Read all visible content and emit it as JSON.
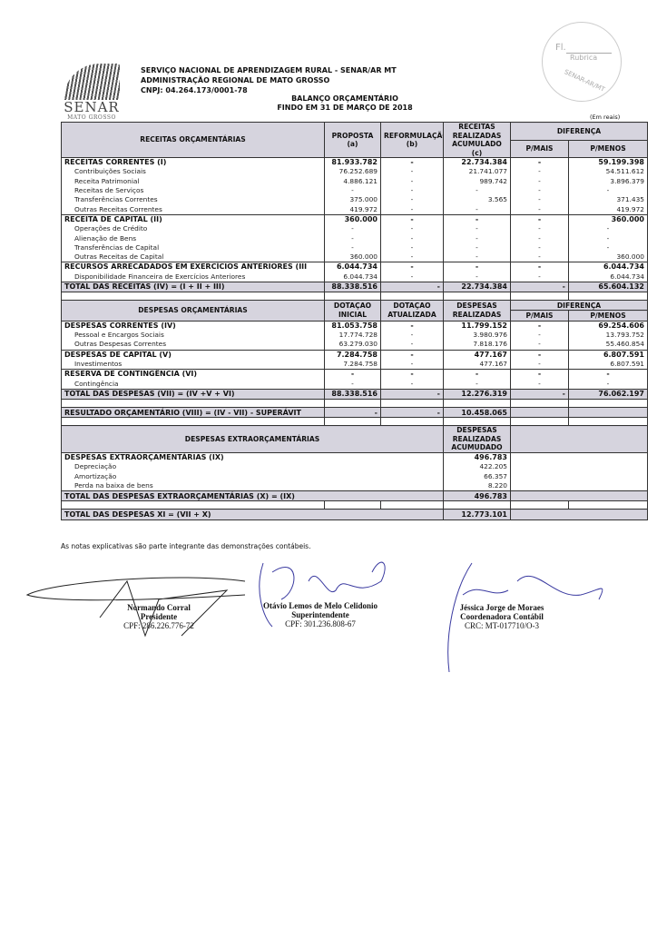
{
  "logo": {
    "name": "SENAR",
    "sub": "MATO GROSSO"
  },
  "header": {
    "org_line1": "SERVIÇO NACIONAL DE APRENDIZAGEM RURAL - SENAR/AR MT",
    "org_line2": "ADMINISTRAÇÃO REGIONAL DE MATO GROSSO",
    "cnpj": "CNPJ: 04.264.173/0001-78",
    "title": "BALANÇO ORÇAMENTÁRIO",
    "subtitle": "FINDO EM 31 DE MARÇO DE 2018",
    "unit": "(Em reais)"
  },
  "stamp": {
    "fl": "Fl.",
    "rubrica": "Rubrica",
    "org": "SENAR-AR/MT"
  },
  "receitas": {
    "header": {
      "label": "RECEITAS ORÇAMENTÁRIAS",
      "c1": [
        "PROPOSTA",
        "(a)"
      ],
      "c2": [
        "REFORMULAÇÃO",
        "(b)"
      ],
      "c3": [
        "RECEITAS",
        "REALIZADAS",
        "ACUMULADO",
        "(c)"
      ],
      "diff": "DIFERENÇA",
      "c4": "P/MAIS",
      "c5": "P/MENOS"
    },
    "rows": [
      {
        "kind": "main",
        "label": "RECEITAS CORRENTES (I)",
        "values": [
          "81.933.782",
          "-",
          "22.734.384",
          "-",
          "59.199.398"
        ]
      },
      {
        "kind": "sub",
        "label": "Contribuições Sociais",
        "values": [
          "76.252.689",
          "-",
          "21.741.077",
          "-",
          "54.511.612"
        ]
      },
      {
        "kind": "sub",
        "label": "Receita Patrimonial",
        "values": [
          "4.886.121",
          "-",
          "989.742",
          "-",
          "3.896.379"
        ]
      },
      {
        "kind": "sub",
        "label": "Receitas de Serviços",
        "values": [
          "-",
          "-",
          "-",
          "-",
          "-"
        ]
      },
      {
        "kind": "sub",
        "label": "Transferências Correntes",
        "values": [
          "375.000",
          "-",
          "3.565",
          "-",
          "371.435"
        ]
      },
      {
        "kind": "sub",
        "label": "Outras Receitas Correntes",
        "values": [
          "419.972",
          "-",
          "-",
          "-",
          "419.972"
        ]
      },
      {
        "kind": "main",
        "label": "RECEITA DE CAPITAL (II)",
        "values": [
          "360.000",
          "-",
          "-",
          "-",
          "360.000"
        ]
      },
      {
        "kind": "sub",
        "label": "Operações de Crédito",
        "values": [
          "-",
          "-",
          "-",
          "-",
          "-"
        ]
      },
      {
        "kind": "sub",
        "label": "Alienação de Bens",
        "values": [
          "-",
          "-",
          "-",
          "-",
          "-"
        ]
      },
      {
        "kind": "sub",
        "label": "Transferências de Capital",
        "values": [
          "-",
          "-",
          "-",
          "-",
          "-"
        ]
      },
      {
        "kind": "sub",
        "label": "Outras Receitas de Capital",
        "values": [
          "360.000",
          "-",
          "-",
          "-",
          "360.000"
        ]
      },
      {
        "kind": "main",
        "label": "RECURSOS ARRECADADOS EM EXERCÍCIOS ANTERIORES (III",
        "values": [
          "6.044.734",
          "-",
          "-",
          "-",
          "6.044.734"
        ]
      },
      {
        "kind": "sub",
        "label": "Disponibilidade Financeira de Exercícios Anteriores",
        "values": [
          "6.044.734",
          "-",
          "-",
          "-",
          "6.044.734"
        ]
      },
      {
        "kind": "total",
        "label": "TOTAL DAS RECEITAS (IV) = (I + II + III)",
        "values": [
          "88.338.516",
          "-",
          "22.734.384",
          "-",
          "65.604.132"
        ]
      }
    ]
  },
  "despesas": {
    "header": {
      "label": "DESPESAS ORÇAMENTÁRIAS",
      "c1": [
        "DOTAÇAO",
        "INICIAL"
      ],
      "c2": [
        "DOTAÇAO",
        "ATUALIZADA"
      ],
      "c3": [
        "DESPESAS",
        "REALIZADAS"
      ],
      "diff": "DIFERENÇA",
      "c4": "P/MAIS",
      "c5": "P/MENOS"
    },
    "rows": [
      {
        "kind": "main",
        "label": "DESPESAS CORRENTES (IV)",
        "values": [
          "81.053.758",
          "-",
          "11.799.152",
          "-",
          "69.254.606"
        ]
      },
      {
        "kind": "sub",
        "label": "Pessoal e Encargos Sociais",
        "values": [
          "17.774.728",
          "-",
          "3.980.976",
          "-",
          "13.793.752"
        ]
      },
      {
        "kind": "sub",
        "label": "Outras Despesas Correntes",
        "values": [
          "63.279.030",
          "-",
          "7.818.176",
          "-",
          "55.460.854"
        ]
      },
      {
        "kind": "main",
        "label": "DESPESAS DE CAPITAL (V)",
        "values": [
          "7.284.758",
          "-",
          "477.167",
          "-",
          "6.807.591"
        ]
      },
      {
        "kind": "sub",
        "label": "Investimentos",
        "values": [
          "7.284.758",
          "-",
          "477.167",
          "-",
          "6.807.591"
        ]
      },
      {
        "kind": "main",
        "label": "RESERVA DE CONTINGÊNCIA (VI)",
        "values": [
          "-",
          "-",
          "-",
          "-",
          "-"
        ]
      },
      {
        "kind": "sub",
        "label": "Contingência",
        "values": [
          "-",
          "-",
          "-",
          "-",
          "-"
        ]
      },
      {
        "kind": "total",
        "label": "TOTAL DAS DESPESAS (VII) = (IV +V + VI)",
        "values": [
          "88.338.516",
          "-",
          "12.276.319",
          "-",
          "76.062.197"
        ]
      }
    ]
  },
  "resultado": {
    "label": "RESULTADO ORÇAMENTÁRIO (VIII) = (IV - VII)  - SUPERÁVIT",
    "values": [
      "-",
      "-",
      "10.458.065",
      "",
      ""
    ]
  },
  "extra": {
    "header": {
      "label": "DESPESAS EXTRAORÇAMENTÁRIAS",
      "c3": [
        "DESPESAS",
        "REALIZADAS",
        "ACUMUDADO"
      ]
    },
    "rows": [
      {
        "kind": "main",
        "label": "DESPESAS EXTRAORÇAMENTÁRIAS (IX)",
        "value": "496.783"
      },
      {
        "kind": "sub",
        "label": "Depreciação",
        "value": "422.205"
      },
      {
        "kind": "sub",
        "label": "Amortização",
        "value": "66.357"
      },
      {
        "kind": "sub",
        "label": "Perda na baixa de bens",
        "value": "8.220"
      },
      {
        "kind": "total",
        "label": "TOTAL DAS DESPESAS EXTRAORÇAMENTÁRIAS (X) = (IX)",
        "value": "496.783"
      }
    ]
  },
  "total_final": {
    "label": "TOTAL DAS DESPESAS XI = (VII + X)",
    "value": "12.773.101"
  },
  "note": "As notas explicativas são parte integrante das demonstrações contábeis.",
  "signatures": [
    {
      "name": "Normando Corral",
      "role": "Presidente",
      "doc": "CPF: 286.226.776-72"
    },
    {
      "name": "Otávio Lemos de Melo Celidonio",
      "role": "Superintendente",
      "doc": "CPF: 301.236.808-67"
    },
    {
      "name": "Jéssica Jorge de Moraes",
      "role": "Coordenadora Contábil",
      "doc": "CRC: MT-017710/O-3"
    }
  ],
  "colors": {
    "header_fill": "#d5d3dc",
    "ink": "#111111",
    "signature_ink": "#3a3aa0"
  }
}
